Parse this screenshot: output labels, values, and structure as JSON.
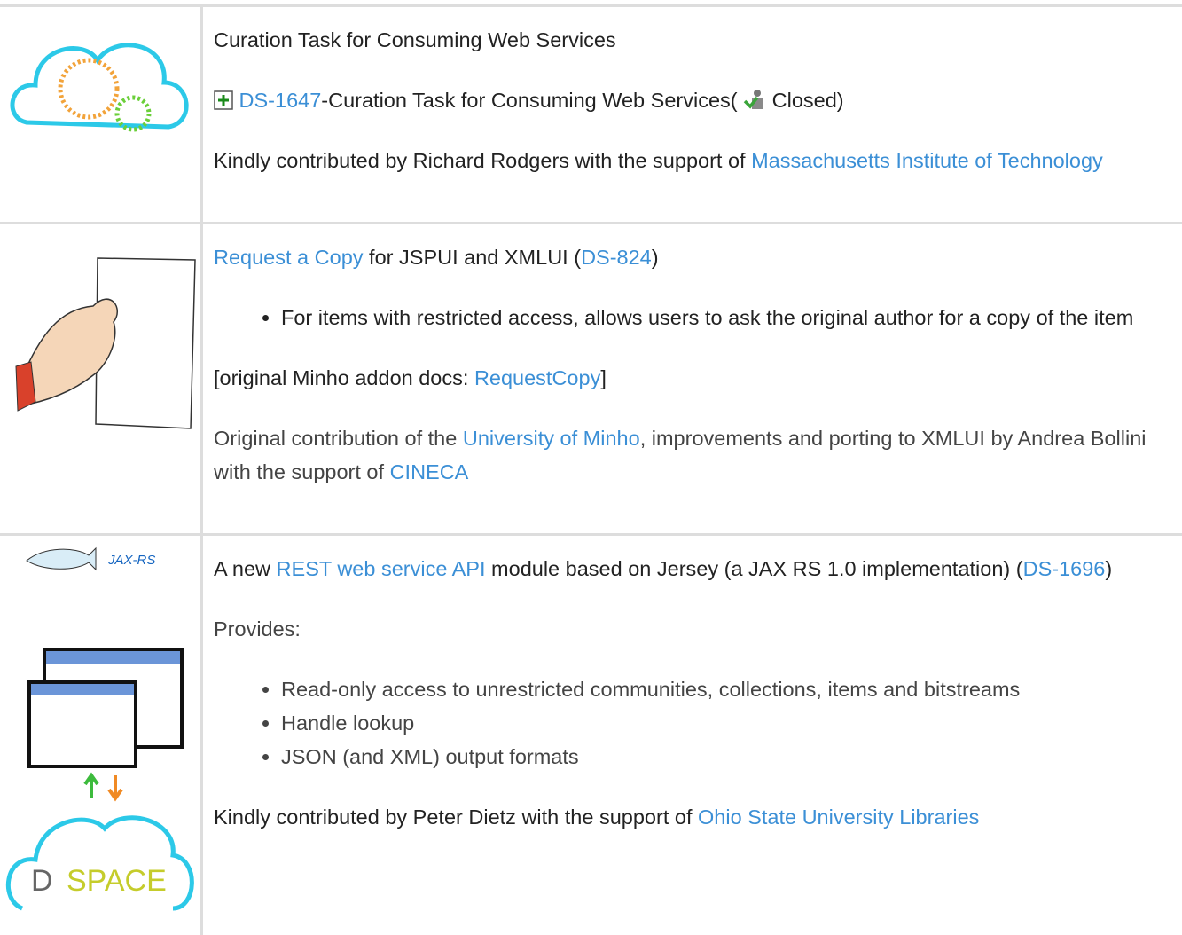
{
  "rows": [
    {
      "image": {
        "kind": "curation"
      },
      "blocks": [
        {
          "kind": "p",
          "segments": [
            {
              "text": "Curation Task for Consuming Web Services"
            }
          ]
        },
        {
          "kind": "p",
          "segments": [
            {
              "icon": "expand"
            },
            {
              "text": "DS-1647",
              "link": true
            },
            {
              "text": "-Curation Task for Consuming Web Services( "
            },
            {
              "icon": "status"
            },
            {
              "text": "Closed)"
            }
          ]
        },
        {
          "kind": "p",
          "segments": [
            {
              "text": "Kindly contributed by Richard Rodgers with the support of "
            },
            {
              "text": "Massachusetts Institute of Technology",
              "link": true
            }
          ]
        }
      ]
    },
    {
      "image": {
        "kind": "request"
      },
      "blocks": [
        {
          "kind": "p",
          "segments": [
            {
              "text": "Request a Copy",
              "link": true
            },
            {
              "text": " for JSPUI and XMLUI ("
            },
            {
              "text": "DS-824",
              "link": true
            },
            {
              "text": ")"
            }
          ]
        },
        {
          "kind": "list",
          "items": [
            "For items with restricted access, allows users to ask the original author for a copy of the item"
          ]
        },
        {
          "kind": "p",
          "segments": [
            {
              "text": "[original Minho addon docs: "
            },
            {
              "text": "RequestCopy",
              "link": true
            },
            {
              "text": "]"
            }
          ]
        },
        {
          "kind": "p",
          "muted": true,
          "segments": [
            {
              "text": "Original contribution of the "
            },
            {
              "text": "University of Minho",
              "link": true
            },
            {
              "text": ", improvements and porting to XMLUI by Andrea Bollini with the support of "
            },
            {
              "text": "CINECA",
              "link": true
            }
          ]
        }
      ]
    },
    {
      "image": {
        "kind": "rest",
        "jax_label": "JAX-RS",
        "dspace_label": [
          "D",
          "SPACE"
        ]
      },
      "blocks": [
        {
          "kind": "p",
          "segments": [
            {
              "text": "A new "
            },
            {
              "text": "REST web service API",
              "link": true
            },
            {
              "text": " module based on Jersey (a JAX RS 1.0 implementation) ("
            },
            {
              "text": "DS-1696",
              "link": true
            },
            {
              "text": ")"
            }
          ]
        },
        {
          "kind": "p",
          "muted": true,
          "segments": [
            {
              "text": "Provides:"
            }
          ]
        },
        {
          "kind": "list",
          "muted": true,
          "items": [
            "Read-only access to unrestricted communities, collections, items and bitstreams",
            "Handle lookup",
            "JSON (and XML) output formats"
          ]
        },
        {
          "kind": "p",
          "segments": [
            {
              "text": "Kindly contributed by Peter Dietz with the support of "
            },
            {
              "text": "Ohio State University Libraries",
              "link": true
            }
          ]
        }
      ]
    }
  ]
}
